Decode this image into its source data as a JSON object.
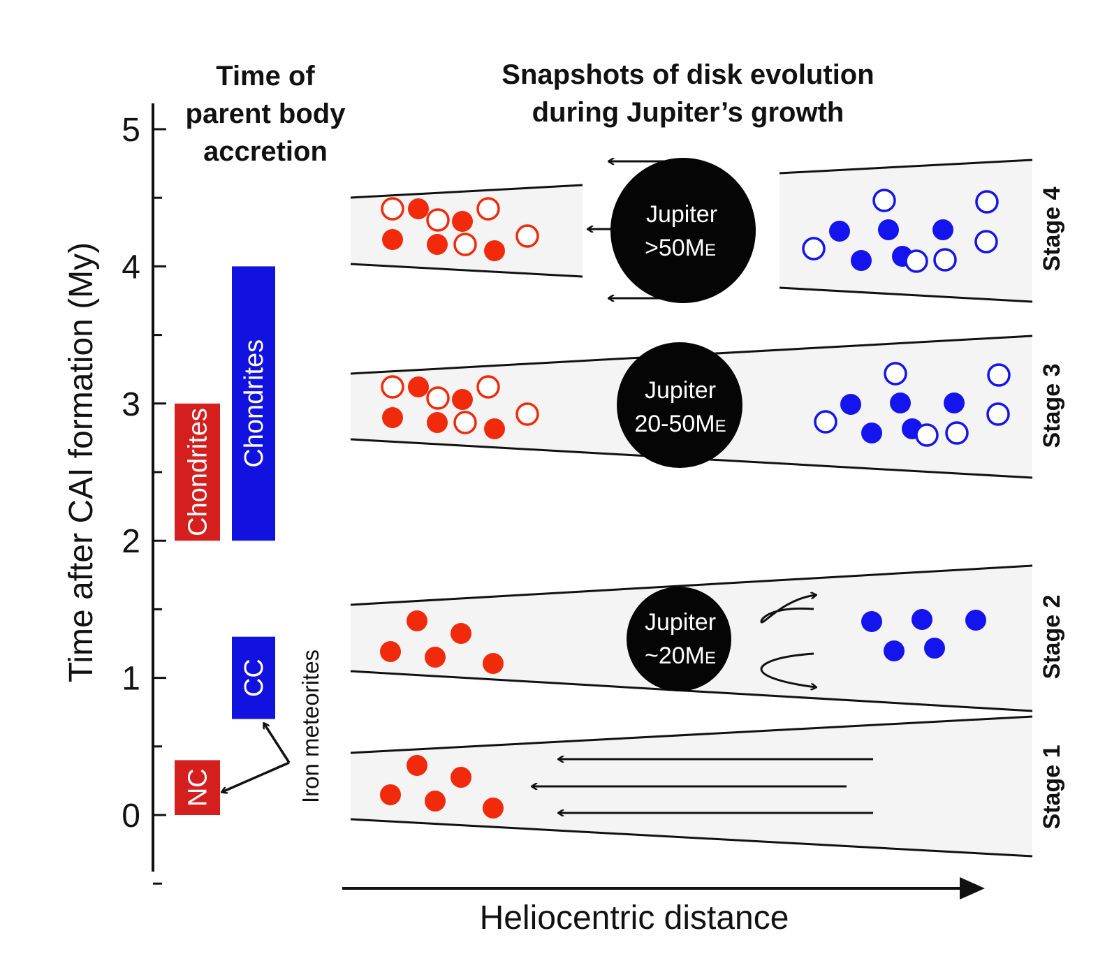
{
  "left_title": [
    "Time of",
    "parent body",
    "accretion"
  ],
  "right_title": [
    "Snapshots of disk evolution",
    "during Jupiter’s growth"
  ],
  "y_axis": {
    "label": "Time after CAI formation (My)",
    "ticks": [
      "0",
      "1",
      "2",
      "3",
      "4",
      "5"
    ],
    "range": [
      0,
      5
    ]
  },
  "bars": [
    {
      "label": "NC",
      "from": 0.0,
      "to": 0.4,
      "color": "#d51e1e"
    },
    {
      "label": "CC",
      "from": 0.7,
      "to": 1.3,
      "color": "#1212e0"
    },
    {
      "label": "Chondrites",
      "from": 2.0,
      "to": 3.0,
      "color": "#d51e1e"
    },
    {
      "label": "Chondrites",
      "from": 2.0,
      "to": 4.0,
      "color": "#1212e0"
    }
  ],
  "iron_label": "Iron meteorites",
  "stages": [
    "Stage 1",
    "Stage 2",
    "Stage 3",
    "Stage 4"
  ],
  "jupiter": {
    "stage2": [
      "Jupiter",
      "~20M",
      "E"
    ],
    "stage3": [
      "Jupiter",
      "20-50M",
      "E"
    ],
    "stage4": [
      "Jupiter",
      ">50M",
      "E"
    ]
  },
  "x_axis_label": "Heliocentric distance",
  "colors": {
    "nc": "#f02a0a",
    "cc": "#1414ee",
    "disk": "#f4f4f4"
  }
}
